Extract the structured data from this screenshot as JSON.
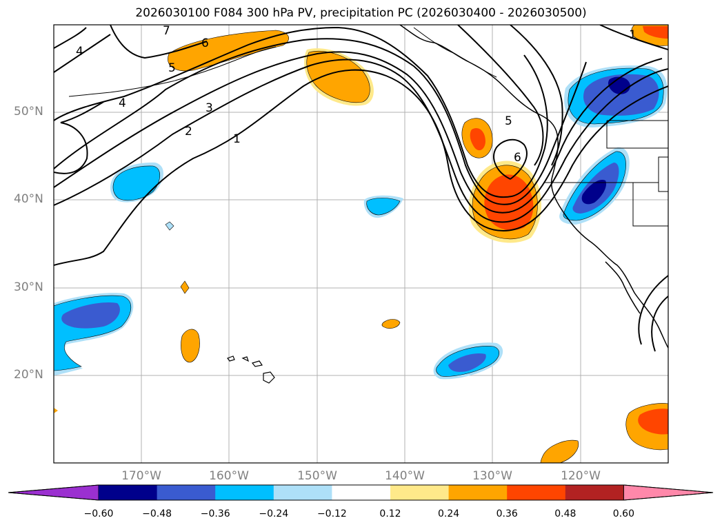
{
  "title": "2026030100 F084 300 hPa PV, precipitation PC (2026030400 - 2026030500)",
  "lat_labels": [
    "50°N",
    "40°N",
    "30°N",
    "20°N"
  ],
  "lon_labels": [
    "170°W",
    "160°W",
    "150°W",
    "140°W",
    "130°W",
    "120°W"
  ],
  "pv_contour_labels": [
    "7",
    "6",
    "5",
    "4",
    "4",
    "3",
    "2",
    "1",
    "5",
    "6",
    "1"
  ],
  "colorbar": {
    "tick_labels": [
      "−0.60",
      "−0.48",
      "−0.36",
      "−0.24",
      "−0.12",
      "0.12",
      "0.24",
      "0.36",
      "0.48",
      "0.60"
    ],
    "colors": [
      "#9b30d0",
      "#00008b",
      "#3a5bd0",
      "#00bfff",
      "#aee0f8",
      "#ffffff",
      "#ffe98a",
      "#ffa500",
      "#ff4500",
      "#b22222",
      "#ff88aa"
    ]
  },
  "map": {
    "lat_range": [
      10,
      60
    ],
    "lon_range": [
      -180,
      -110
    ],
    "fields": [
      "300 hPa PV contours",
      "precipitation PC shading"
    ]
  }
}
